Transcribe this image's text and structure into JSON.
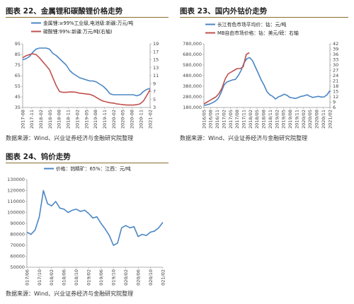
{
  "figures": [
    {
      "title": "图表 22、金属锂和碳酸锂价格走势",
      "source": "数据来源：Wind、兴业证券经济与金融研究院整理"
    },
    {
      "title": "图表 23、国内外钴价走势",
      "source": "数据来源：Wind、兴业证券经济与金融研究院整理"
    },
    {
      "title": "图表 24、钨价走势",
      "source": "数据来源：Wind、兴业证券经济与金融研究院整理"
    }
  ],
  "colors": {
    "blue": "#4a86c5",
    "red": "#c0504d",
    "rule": "#8a6d2f"
  },
  "chart_data": [
    {
      "type": "line",
      "title": "图表 22、金属锂和碳酸锂价格走势",
      "y_left": {
        "ticks": [
          "35",
          "45",
          "55",
          "65",
          "75",
          "85",
          "95"
        ],
        "range": [
          35,
          95
        ]
      },
      "y_right": {
        "ticks": [
          "3",
          "5",
          "7",
          "9",
          "11",
          "13",
          "15",
          "17",
          "19"
        ],
        "range": [
          3,
          19
        ]
      },
      "x_ticks": [
        "2017-08",
        "2017-11",
        "2018-02",
        "2018-05",
        "2018-08",
        "2018-11",
        "2019-02",
        "2019-05",
        "2019-08",
        "2019-11",
        "2020-02",
        "2020-05",
        "2020-08",
        "2020-11",
        "2021-02"
      ],
      "legend_position": "top",
      "series": [
        {
          "name": "金属锂:≥99%工业级,电池级:新疆:万元/吨",
          "axis": "left",
          "color": "blue",
          "values": [
            80,
            81,
            83,
            87,
            90,
            91,
            91,
            91,
            90,
            86,
            84,
            81,
            78,
            75,
            70,
            67,
            65,
            63,
            62,
            61,
            60,
            60,
            59,
            57,
            55,
            52,
            48,
            47,
            47,
            47,
            47,
            47,
            47,
            47,
            46,
            47,
            50,
            52,
            53
          ]
        },
        {
          "name": "碳酸锂:99%:新疆:万元/吨(右轴)",
          "axis": "right",
          "color": "red",
          "values": [
            15.5,
            16,
            16.3,
            16.5,
            16.3,
            15.5,
            14.5,
            13.5,
            12.5,
            10.5,
            8.5,
            7,
            6.8,
            6.8,
            6.9,
            6.9,
            6.8,
            6.6,
            6.5,
            6.4,
            6.3,
            6.0,
            5.5,
            5.0,
            4.6,
            4.4,
            4.2,
            4.1,
            3.9,
            3.8,
            3.7,
            3.6,
            3.6,
            3.6,
            3.7,
            3.9,
            4.6,
            6.0,
            7.5
          ]
        }
      ]
    },
    {
      "type": "line",
      "title": "图表 23、国内外钴价走势",
      "y_left": {
        "ticks": [
          "180,000",
          "280,000",
          "380,000",
          "480,000",
          "580,000",
          "680,000",
          "780,000"
        ],
        "range": [
          180000,
          780000
        ]
      },
      "y_right": {
        "ticks": [
          "6",
          "9",
          "12",
          "15",
          "18",
          "21",
          "24",
          "27",
          "30",
          "33",
          "36",
          "39",
          "42"
        ],
        "range": [
          6,
          42
        ]
      },
      "x_ticks": [
        "2016/05",
        "2016/08",
        "2016/11",
        "2017/02",
        "2017/05",
        "2017/08",
        "2017/11",
        "2018/02",
        "2018/05",
        "2018/08",
        "2018/11",
        "2019/02",
        "2019/05",
        "2019/08",
        "2019/11",
        "2020/02",
        "2020/05",
        "2020/08",
        "2020/11",
        "2021/02"
      ],
      "legend_position": "top",
      "series": [
        {
          "name": "长江有色市场平均价：钴：元/吨",
          "axis": "left",
          "color": "blue",
          "values": [
            200000,
            205000,
            212000,
            225000,
            240000,
            265000,
            320000,
            390000,
            420000,
            430000,
            440000,
            445000,
            480000,
            530000,
            600000,
            640000,
            650000,
            620000,
            560000,
            500000,
            440000,
            390000,
            330000,
            300000,
            285000,
            260000,
            280000,
            290000,
            305000,
            295000,
            275000,
            270000,
            265000,
            275000,
            285000,
            290000,
            300000,
            285000,
            275000,
            280000,
            285000,
            278000,
            280000,
            300000,
            340000
          ]
        },
        {
          "name": "MB自由市场价格：钴：美元/磅：右轴",
          "axis": "right",
          "color": "red",
          "values": [
            8,
            9,
            10,
            11,
            12,
            14,
            17,
            22,
            25,
            26,
            27,
            28,
            28,
            29,
            36,
            37
          ]
        }
      ]
    },
    {
      "type": "line",
      "title": "图表 24、钨价走势",
      "y_left": {
        "ticks": [
          "50000",
          "60000",
          "70000",
          "80000",
          "90000",
          "100000",
          "110000",
          "120000",
          "130000"
        ],
        "range": [
          50000,
          130000
        ]
      },
      "x_ticks": [
        "2017/06",
        "2017/10",
        "2018/02",
        "2018/06",
        "2018/10",
        "2019/02",
        "2019/06",
        "2019/10",
        "2020/02",
        "2020/06",
        "2020/10",
        "2021/02"
      ],
      "legend_position": "top",
      "series": [
        {
          "name": "价格：钨精矿：65%：江西：元/吨",
          "axis": "left",
          "color": "blue",
          "values": [
            82000,
            80000,
            84000,
            96000,
            120000,
            108000,
            106000,
            110000,
            104000,
            103000,
            100000,
            102000,
            103000,
            101000,
            102000,
            99000,
            95000,
            96000,
            90000,
            85000,
            79000,
            70000,
            72000,
            86000,
            88000,
            86000,
            87000,
            78000,
            80000,
            79000,
            82000,
            83000,
            86000,
            91000
          ]
        }
      ]
    }
  ]
}
